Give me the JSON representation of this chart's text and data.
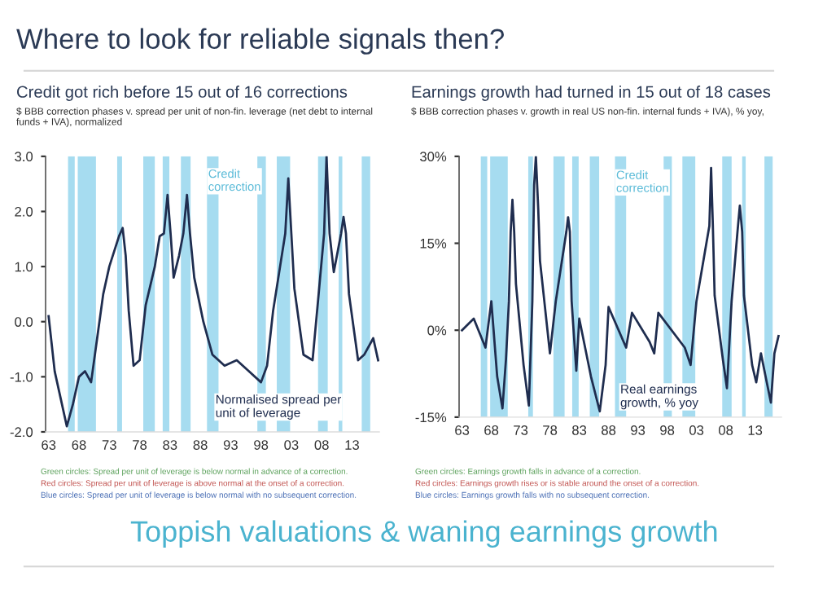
{
  "chart_data": [
    {
      "type": "line",
      "title": "Credit got rich before 15 out of 16 corrections",
      "subtitle": "$ BBB correction phases v. spread per unit of non-fin. leverage (net debt to internal funds + IVA), normalized",
      "annotations": [
        "Where to look for reliable signals then?",
        "Credit correction",
        "Green circles: Spread per unit of leverage is below normal in advance of a correction.",
        "Red circles: Spread per unit of leverage is above normal at the onset of a correction.",
        "Blue circles: Spread per unit of leverage is below normal with no subsequent correction."
      ],
      "series": [
        {
          "name": "Normalised spread per unit of leverage",
          "color": "#1f2d4f",
          "x": [
            1963,
            1964,
            1965,
            1966,
            1967,
            1968,
            1969,
            1970,
            1971,
            1972,
            1973,
            1974.6,
            1975.2,
            1975.7,
            1976.2,
            1977,
            1978,
            1979,
            1980.5,
            1981.3,
            1982,
            1982.6,
            1983.1,
            1983.6,
            1984.5,
            1985.2,
            1985.8,
            1986.3,
            1987,
            1988.5,
            1990,
            1992,
            1994,
            1996,
            1998,
            1999,
            2000,
            2001,
            2002,
            2002.5,
            2003,
            2003.5,
            2005,
            2006.5,
            2007.5,
            2008.4,
            2008.8,
            2009.3,
            2010,
            2011.2,
            2011.6,
            2012,
            2012.5,
            2014,
            2015,
            2016.5,
            2017.3
          ],
          "values": [
            0.1,
            -0.9,
            -1.4,
            -1.9,
            -1.5,
            -1.0,
            -0.9,
            -1.1,
            -0.3,
            0.5,
            1.0,
            1.55,
            1.7,
            1.2,
            0.2,
            -0.8,
            -0.7,
            0.3,
            1.0,
            1.55,
            1.6,
            2.3,
            1.6,
            0.8,
            1.2,
            1.6,
            2.3,
            1.6,
            0.8,
            0.0,
            -0.6,
            -0.8,
            -0.7,
            -0.9,
            -1.1,
            -0.8,
            0.2,
            0.9,
            1.6,
            2.6,
            1.6,
            0.6,
            -0.6,
            -0.7,
            0.5,
            1.6,
            3.0,
            1.6,
            0.9,
            1.6,
            1.9,
            1.6,
            0.5,
            -0.7,
            -0.6,
            -0.3,
            -0.7
          ]
        }
      ],
      "bands": [
        {
          "axis": "x",
          "from": 1966.2,
          "to": 1967.3,
          "color": "#a6dcf0"
        },
        {
          "axis": "x",
          "from": 1967.8,
          "to": 1970.8,
          "color": "#a6dcf0"
        },
        {
          "axis": "x",
          "from": 1974.3,
          "to": 1975.1,
          "color": "#a6dcf0"
        },
        {
          "axis": "x",
          "from": 1978.6,
          "to": 1980.5,
          "color": "#a6dcf0"
        },
        {
          "axis": "x",
          "from": 1981.8,
          "to": 1982.9,
          "color": "#a6dcf0"
        },
        {
          "axis": "x",
          "from": 1984.8,
          "to": 1986.4,
          "color": "#a6dcf0"
        },
        {
          "axis": "x",
          "from": 1989.1,
          "to": 1991.0,
          "color": "#a6dcf0"
        },
        {
          "axis": "x",
          "from": 1997.4,
          "to": 1998.8,
          "color": "#a6dcf0"
        },
        {
          "axis": "x",
          "from": 2000.6,
          "to": 2002.8,
          "color": "#a6dcf0"
        },
        {
          "axis": "x",
          "from": 2007.4,
          "to": 2009.0,
          "color": "#a6dcf0"
        },
        {
          "axis": "x",
          "from": 2010.8,
          "to": 2011.4,
          "color": "#a6dcf0"
        },
        {
          "axis": "x",
          "from": 2014.6,
          "to": 2016.0,
          "color": "#a6dcf0"
        }
      ],
      "xlim": [
        1962.5,
        2017.5
      ],
      "xticks": [
        {
          "value": 1963,
          "label": "63"
        },
        {
          "value": 1968,
          "label": "68"
        },
        {
          "value": 1973,
          "label": "73"
        },
        {
          "value": 1978,
          "label": "78"
        },
        {
          "value": 1983,
          "label": "83"
        },
        {
          "value": 1988,
          "label": "88"
        },
        {
          "value": 1993,
          "label": "93"
        },
        {
          "value": 1998,
          "label": "98"
        },
        {
          "value": 2003,
          "label": "03"
        },
        {
          "value": 2008,
          "label": "08"
        },
        {
          "value": 2013,
          "label": "13"
        }
      ],
      "ylim": [
        -2,
        3
      ],
      "yticks": [
        {
          "value": -2,
          "label": "-2.0"
        },
        {
          "value": -1,
          "label": "-1.0"
        },
        {
          "value": 0,
          "label": "0.0"
        },
        {
          "value": 1,
          "label": "1.0"
        },
        {
          "value": 2,
          "label": "2.0"
        },
        {
          "value": 3,
          "label": "3.0"
        }
      ],
      "grid": false
    },
    {
      "type": "line",
      "title": "Earnings growth had turned in 15 out of 18 cases",
      "subtitle": "$ BBB correction phases v. growth in real US non-fin. internal funds + IVA), % yoy,",
      "annotations": [
        "Credit correction",
        "Green circles: Earnings growth falls in advance of a correction.",
        "Red circles: Earnings growth rises or is stable around the onset of a correction.",
        "Blue circles: Earnings growth falls with no subsequent correction.",
        "Toppish valuations & waning earnings growth"
      ],
      "series": [
        {
          "name": "Real earnings growth, % yoy",
          "color": "#1f2d4f",
          "x": [
            1963,
            1965,
            1967,
            1968,
            1969,
            1969.9,
            1970.5,
            1971,
            1971.3,
            1971.6,
            1971.9,
            1972.2,
            1973.5,
            1974.4,
            1975,
            1975.3,
            1975.6,
            1976,
            1976.3,
            1978,
            1979,
            1980.8,
            1981.1,
            1981.4,
            1981.7,
            1982.5,
            1983,
            1985,
            1986.5,
            1987.5,
            1988,
            1991,
            1992,
            1995,
            1995.8,
            1996.5,
            2001,
            2002,
            2003,
            2005.2,
            2005.5,
            2005.8,
            2006.1,
            2007.5,
            2008.2,
            2009,
            2010,
            2010.4,
            2010.8,
            2011.1,
            2012.5,
            2013.2,
            2014,
            2015,
            2015.7,
            2016.3,
            2017
          ],
          "values": [
            0,
            2,
            -3,
            5,
            -8,
            -13.5,
            -5,
            5,
            17,
            22.5,
            17,
            8,
            -6,
            -13,
            5,
            25,
            30,
            21,
            12,
            -4,
            5,
            17,
            19.5,
            17,
            5,
            -7,
            2,
            -8,
            -14,
            -6,
            4,
            -3,
            3,
            -2,
            -4,
            3,
            -3,
            -6,
            5,
            18,
            28,
            18,
            6,
            -5,
            -10,
            5,
            17,
            21.5,
            17,
            6,
            -6,
            -9,
            -4,
            -9,
            -12.5,
            -4,
            -1
          ]
        }
      ],
      "bands": [
        {
          "axis": "x",
          "from": 1966.2,
          "to": 1967.3,
          "color": "#a6dcf0"
        },
        {
          "axis": "x",
          "from": 1967.8,
          "to": 1970.8,
          "color": "#a6dcf0"
        },
        {
          "axis": "x",
          "from": 1974.3,
          "to": 1975.1,
          "color": "#a6dcf0"
        },
        {
          "axis": "x",
          "from": 1978.6,
          "to": 1980.5,
          "color": "#a6dcf0"
        },
        {
          "axis": "x",
          "from": 1981.8,
          "to": 1982.9,
          "color": "#a6dcf0"
        },
        {
          "axis": "x",
          "from": 1984.8,
          "to": 1986.4,
          "color": "#a6dcf0"
        },
        {
          "axis": "x",
          "from": 1989.1,
          "to": 1991.0,
          "color": "#a6dcf0"
        },
        {
          "axis": "x",
          "from": 1997.4,
          "to": 1998.8,
          "color": "#a6dcf0"
        },
        {
          "axis": "x",
          "from": 2000.6,
          "to": 2002.8,
          "color": "#a6dcf0"
        },
        {
          "axis": "x",
          "from": 2007.4,
          "to": 2009.0,
          "color": "#a6dcf0"
        },
        {
          "axis": "x",
          "from": 2010.8,
          "to": 2011.4,
          "color": "#a6dcf0"
        },
        {
          "axis": "x",
          "from": 2014.6,
          "to": 2016.0,
          "color": "#a6dcf0"
        }
      ],
      "xlim": [
        1962.5,
        2017.5
      ],
      "xticks": [
        {
          "value": 1963,
          "label": "63"
        },
        {
          "value": 1968,
          "label": "68"
        },
        {
          "value": 1973,
          "label": "73"
        },
        {
          "value": 1978,
          "label": "78"
        },
        {
          "value": 1983,
          "label": "83"
        },
        {
          "value": 1988,
          "label": "88"
        },
        {
          "value": 1993,
          "label": "93"
        },
        {
          "value": 1998,
          "label": "98"
        },
        {
          "value": 2003,
          "label": "03"
        },
        {
          "value": 2008,
          "label": "08"
        },
        {
          "value": 2013,
          "label": "13"
        }
      ],
      "ylim": [
        -15,
        30
      ],
      "yticks": [
        {
          "value": -15,
          "label": "-15%"
        },
        {
          "value": 0,
          "label": "0%"
        },
        {
          "value": 15,
          "label": "15%"
        },
        {
          "value": 30,
          "label": "30%"
        }
      ],
      "grid": false
    }
  ]
}
